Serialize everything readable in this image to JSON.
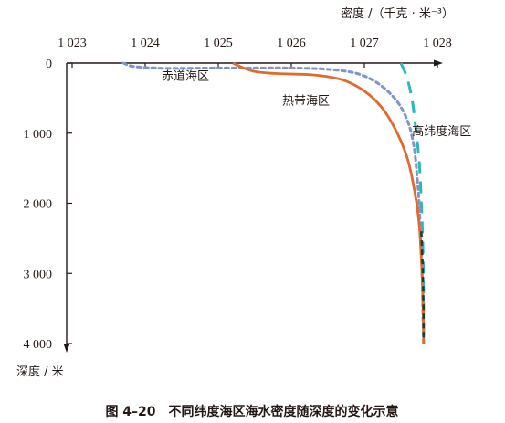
{
  "chart_data": {
    "type": "line",
    "caption": "图 4–20　不同纬度海区海水密度随深度的变化示意",
    "xlabel": "密度 /（千克 · 米⁻³）",
    "ylabel": "深度 / 米",
    "xlim": [
      1023,
      1028
    ],
    "ylim": [
      0,
      4000
    ],
    "x_ticks": [
      "1 023",
      "1 024",
      "1 025",
      "1 026",
      "1 027",
      "1 028"
    ],
    "y_ticks": [
      "0",
      "1 000",
      "2 000",
      "3 000",
      "4 000"
    ],
    "series": [
      {
        "name": "赤道海区",
        "color": "#7f95c6",
        "style": "dotted",
        "points": [
          [
            1023.7,
            0
          ],
          [
            1023.85,
            50
          ],
          [
            1024.3,
            75
          ],
          [
            1025.0,
            70
          ],
          [
            1025.5,
            70
          ],
          [
            1026.0,
            70
          ],
          [
            1026.5,
            90
          ],
          [
            1026.9,
            150
          ],
          [
            1027.2,
            300
          ],
          [
            1027.45,
            550
          ],
          [
            1027.6,
            850
          ],
          [
            1027.68,
            1200
          ],
          [
            1027.72,
            1600
          ],
          [
            1027.75,
            2000
          ],
          [
            1027.77,
            2500
          ],
          [
            1027.79,
            3000
          ],
          [
            1027.8,
            3500
          ],
          [
            1027.81,
            4000
          ]
        ]
      },
      {
        "name": "热带海区",
        "color": "#e06b2d",
        "style": "solid",
        "points": [
          [
            1025.2,
            0
          ],
          [
            1025.3,
            50
          ],
          [
            1025.5,
            120
          ],
          [
            1025.8,
            150
          ],
          [
            1026.3,
            170
          ],
          [
            1026.7,
            240
          ],
          [
            1027.0,
            400
          ],
          [
            1027.25,
            650
          ],
          [
            1027.45,
            1000
          ],
          [
            1027.6,
            1400
          ],
          [
            1027.7,
            1900
          ],
          [
            1027.75,
            2300
          ],
          [
            1027.78,
            2800
          ],
          [
            1027.8,
            3300
          ],
          [
            1027.81,
            3800
          ],
          [
            1027.81,
            4000
          ]
        ]
      },
      {
        "name": "高纬度海区",
        "color": "#2ab7c2",
        "style": "dashed",
        "points": [
          [
            1027.5,
            0
          ],
          [
            1027.58,
            200
          ],
          [
            1027.65,
            500
          ],
          [
            1027.7,
            900
          ],
          [
            1027.75,
            1400
          ],
          [
            1027.78,
            2000
          ],
          [
            1027.8,
            2600
          ],
          [
            1027.81,
            3200
          ],
          [
            1027.81,
            4000
          ]
        ]
      }
    ],
    "deep_water": {
      "color": "#1e3f2f",
      "points": [
        [
          1027.78,
          2400
        ],
        [
          1027.8,
          3000
        ],
        [
          1027.81,
          3600
        ],
        [
          1027.81,
          3950
        ]
      ]
    },
    "annotations": [
      {
        "text": "赤道海区",
        "x": 1024.55,
        "y": 240
      },
      {
        "text": "热带海区",
        "x": 1026.2,
        "y": 590
      },
      {
        "text": "高纬度海区",
        "x": 1028.06,
        "y": 1030
      }
    ]
  }
}
